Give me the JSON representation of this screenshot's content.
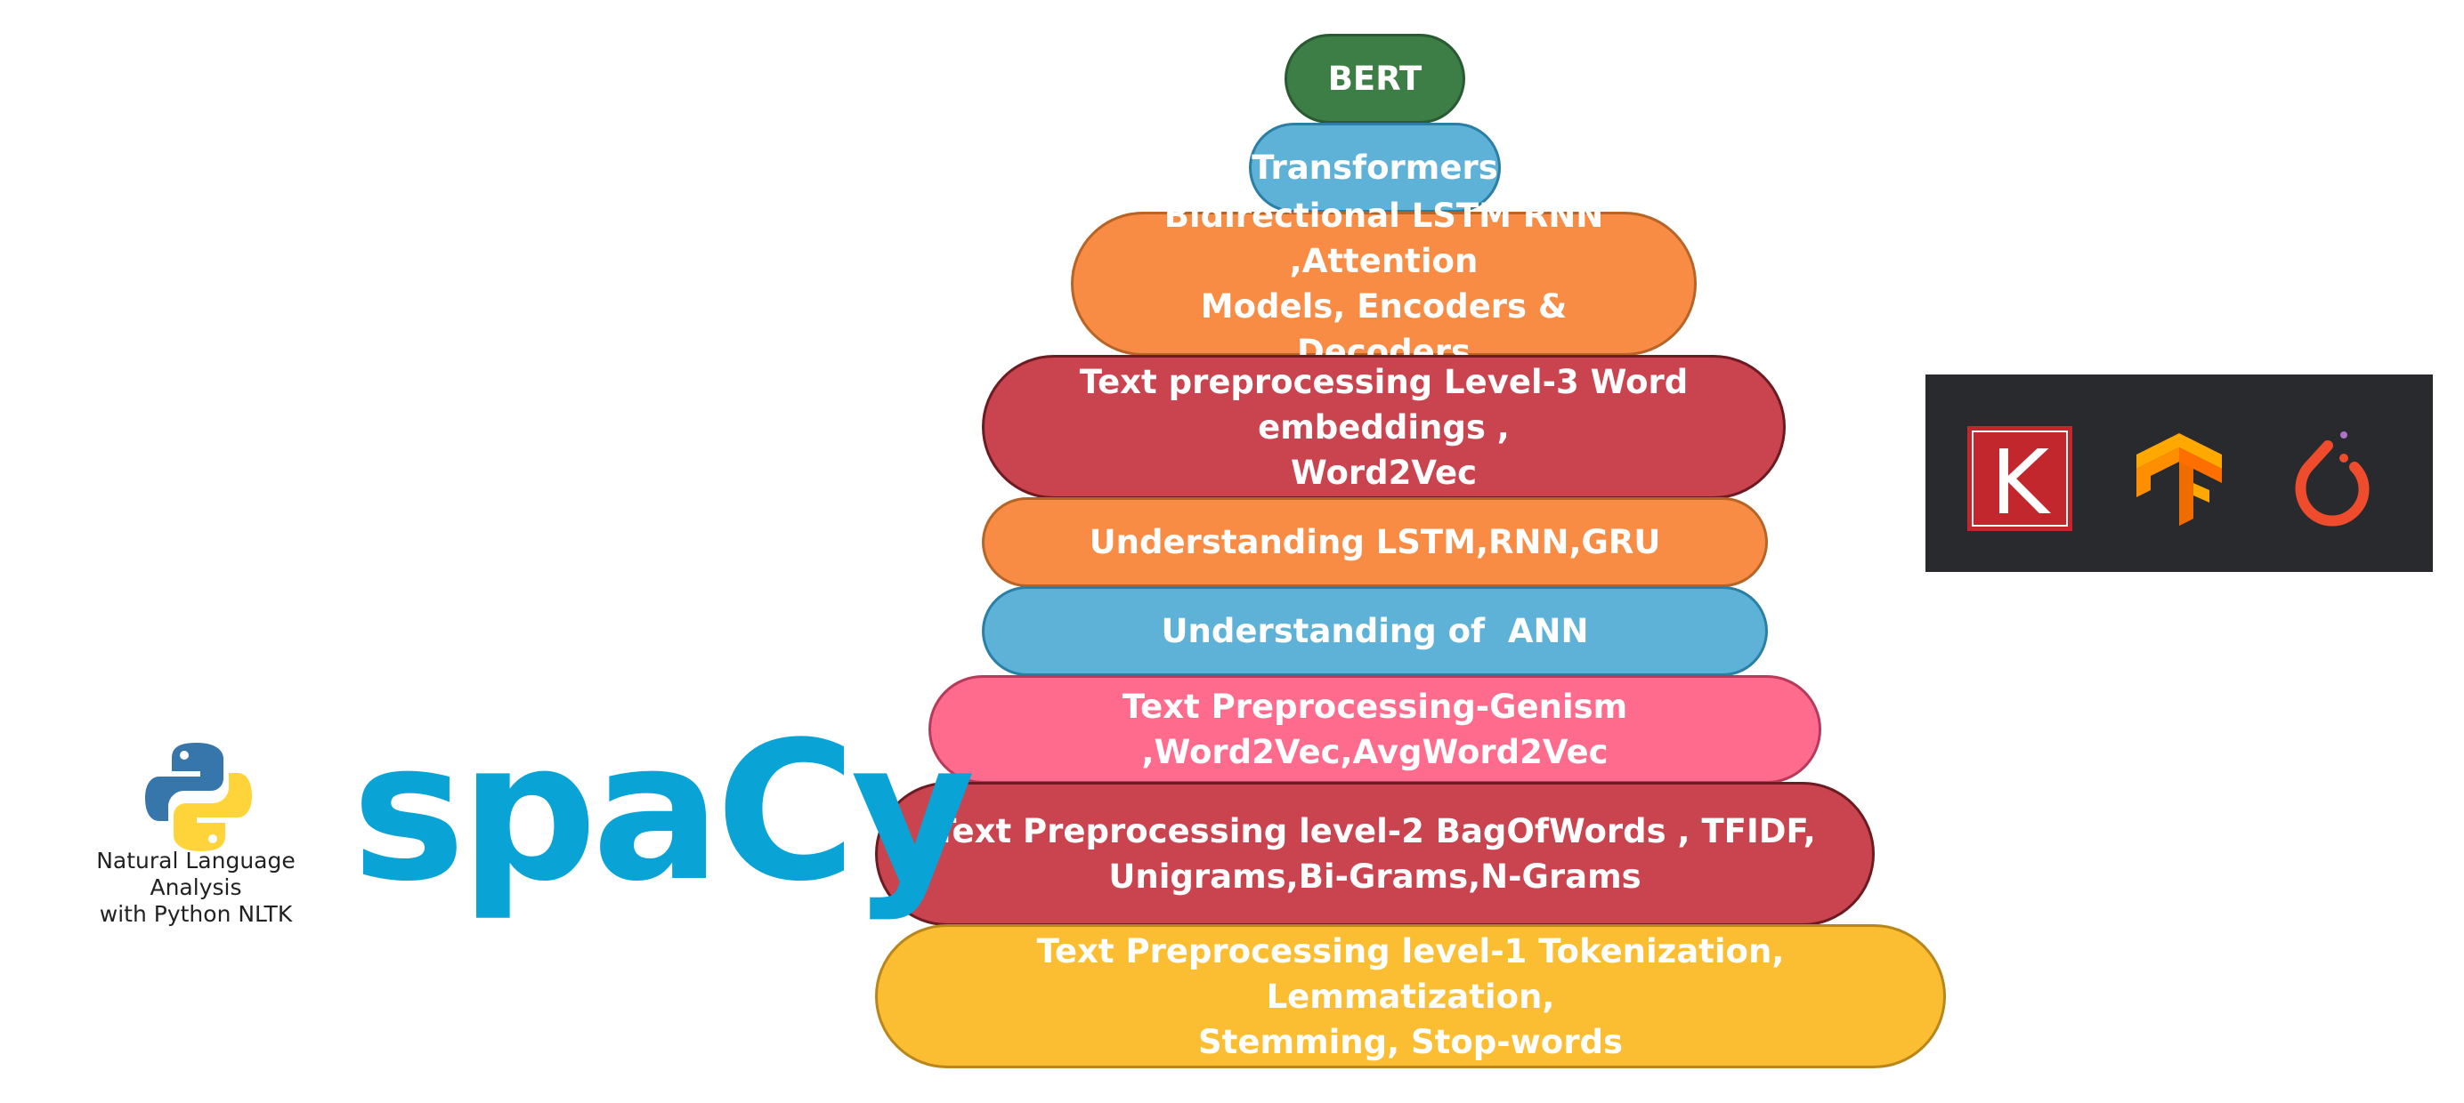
{
  "pyramid": {
    "levels": [
      {
        "lines": [
          "BERT"
        ],
        "color": "#3d7d46"
      },
      {
        "lines": [
          "Transformers"
        ],
        "color": "#5fb2d7"
      },
      {
        "lines": [
          "Bidirectional LSTM RNN ,Attention",
          "Models, Encoders & Decoders"
        ],
        "color": "#f98c45"
      },
      {
        "lines": [
          "Text preprocessing Level-3 Word embeddings ,",
          "Word2Vec"
        ],
        "color": "#c9444e"
      },
      {
        "lines": [
          "Understanding LSTM,RNN,GRU"
        ],
        "color": "#f98c45"
      },
      {
        "lines": [
          "Understanding of  ANN"
        ],
        "color": "#5fb2d7"
      },
      {
        "lines": [
          "Text Preprocessing-Genism ,Word2Vec,AvgWord2Vec"
        ],
        "color": "#fe6b8d"
      },
      {
        "lines": [
          "Text Preprocessing level-2 BagOfWords , TFIDF,",
          "Unigrams,Bi-Grams,N-Grams"
        ],
        "color": "#c9444e"
      },
      {
        "lines": [
          "Text Preprocessing level-1 Tokenization, Lemmatization,",
          "Stemming, Stop-words"
        ],
        "color": "#fbbe32"
      }
    ]
  },
  "nltk": {
    "icon": "python-logo-icon",
    "caption_lines": [
      "Natural Language Analysis",
      "with Python NLTK"
    ]
  },
  "spacy": {
    "logo_text": "spaCy",
    "color": "#09a3d5"
  },
  "frameworks": {
    "icons": [
      "keras-logo-icon",
      "tensorflow-logo-icon",
      "pytorch-logo-icon"
    ],
    "keras_letter": "K",
    "panel_color": "#292a2d"
  }
}
